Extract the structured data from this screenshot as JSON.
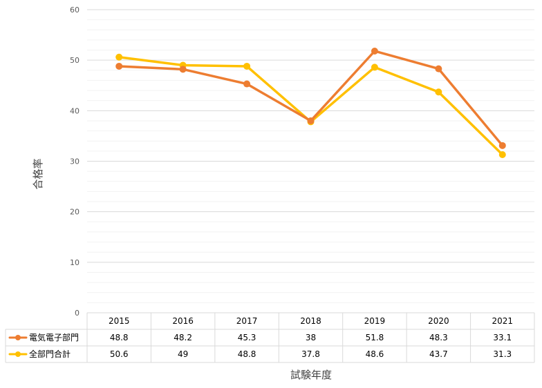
{
  "chart_data": {
    "type": "line",
    "title": "",
    "xlabel": "試験年度",
    "ylabel": "合格率",
    "ylim": [
      0,
      60
    ],
    "y_ticks": [
      0,
      10,
      20,
      30,
      40,
      50,
      60
    ],
    "minor_grid_step": 2,
    "grid": true,
    "legend": "data-table",
    "categories": [
      "2015",
      "2016",
      "2017",
      "2018",
      "2019",
      "2020",
      "2021"
    ],
    "series": [
      {
        "name": "電気電子部門",
        "color": "#ED7D31",
        "values": [
          48.8,
          48.2,
          45.3,
          38,
          51.8,
          48.3,
          33.1
        ],
        "labels": [
          "48.8",
          "48.2",
          "45.3",
          "38",
          "51.8",
          "48.3",
          "33.1"
        ]
      },
      {
        "name": "全部門合計",
        "color": "#FFC000",
        "values": [
          50.6,
          49,
          48.8,
          37.8,
          48.6,
          43.7,
          31.3
        ],
        "labels": [
          "50.6",
          "49",
          "48.8",
          "37.8",
          "48.6",
          "43.7",
          "31.3"
        ]
      }
    ]
  }
}
